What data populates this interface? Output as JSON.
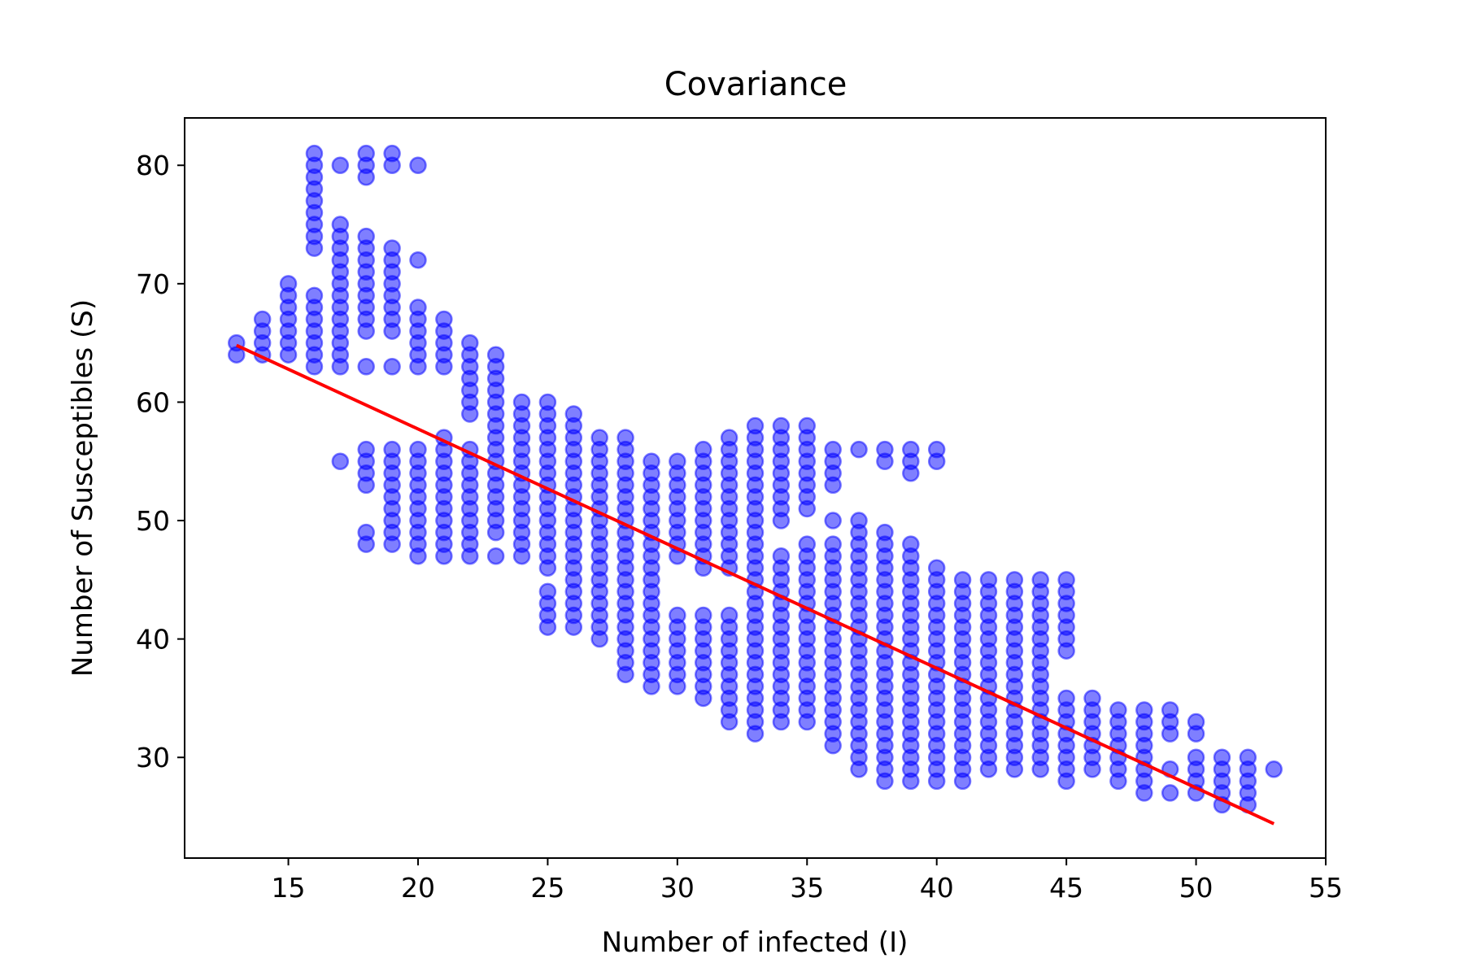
{
  "chart_data": {
    "type": "scatter",
    "title": "Covariance",
    "xlabel": "Number of infected (I)",
    "ylabel": "Number of Susceptibles (S)",
    "xlim": [
      11,
      55
    ],
    "ylim": [
      21.5,
      84
    ],
    "x_ticks": [
      15,
      20,
      25,
      30,
      35,
      40,
      45,
      50,
      55
    ],
    "y_ticks": [
      30,
      40,
      50,
      60,
      70,
      80
    ],
    "grid": false,
    "legend": "none",
    "colors": {
      "points": "#0000ff",
      "fit_line": "#ff0000",
      "axes": "#000000"
    },
    "point_alpha": 0.5,
    "column_ranges": [
      {
        "x": 13,
        "ranges": [
          [
            64,
            65
          ]
        ]
      },
      {
        "x": 14,
        "ranges": [
          [
            64,
            67
          ]
        ]
      },
      {
        "x": 15,
        "ranges": [
          [
            64,
            70
          ]
        ]
      },
      {
        "x": 16,
        "ranges": [
          [
            63,
            69
          ],
          [
            73,
            81
          ]
        ]
      },
      {
        "x": 17,
        "ranges": [
          [
            55,
            55
          ],
          [
            63,
            75
          ],
          [
            80,
            80
          ]
        ]
      },
      {
        "x": 18,
        "ranges": [
          [
            48,
            49
          ],
          [
            53,
            56
          ],
          [
            63,
            63
          ],
          [
            66,
            74
          ],
          [
            79,
            81
          ]
        ]
      },
      {
        "x": 19,
        "ranges": [
          [
            48,
            56
          ],
          [
            63,
            63
          ],
          [
            66,
            73
          ],
          [
            80,
            81
          ]
        ]
      },
      {
        "x": 20,
        "ranges": [
          [
            47,
            56
          ],
          [
            63,
            68
          ],
          [
            72,
            72
          ],
          [
            80,
            80
          ]
        ]
      },
      {
        "x": 21,
        "ranges": [
          [
            47,
            57
          ],
          [
            63,
            67
          ]
        ]
      },
      {
        "x": 22,
        "ranges": [
          [
            47,
            48
          ],
          [
            49,
            56
          ],
          [
            59,
            65
          ]
        ]
      },
      {
        "x": 23,
        "ranges": [
          [
            47,
            47
          ],
          [
            49,
            64
          ]
        ]
      },
      {
        "x": 24,
        "ranges": [
          [
            47,
            60
          ]
        ]
      },
      {
        "x": 25,
        "ranges": [
          [
            41,
            44
          ],
          [
            46,
            60
          ]
        ]
      },
      {
        "x": 26,
        "ranges": [
          [
            41,
            59
          ]
        ]
      },
      {
        "x": 27,
        "ranges": [
          [
            40,
            57
          ]
        ]
      },
      {
        "x": 28,
        "ranges": [
          [
            37,
            57
          ]
        ]
      },
      {
        "x": 29,
        "ranges": [
          [
            36,
            55
          ]
        ]
      },
      {
        "x": 30,
        "ranges": [
          [
            36,
            42
          ],
          [
            47,
            55
          ]
        ]
      },
      {
        "x": 31,
        "ranges": [
          [
            35,
            42
          ],
          [
            46,
            56
          ]
        ]
      },
      {
        "x": 32,
        "ranges": [
          [
            33,
            42
          ],
          [
            46,
            48
          ],
          [
            49,
            57
          ]
        ]
      },
      {
        "x": 33,
        "ranges": [
          [
            32,
            58
          ]
        ]
      },
      {
        "x": 34,
        "ranges": [
          [
            33,
            47
          ],
          [
            50,
            58
          ]
        ]
      },
      {
        "x": 35,
        "ranges": [
          [
            33,
            48
          ],
          [
            51,
            58
          ]
        ]
      },
      {
        "x": 36,
        "ranges": [
          [
            31,
            48
          ],
          [
            50,
            50
          ],
          [
            53,
            56
          ]
        ]
      },
      {
        "x": 37,
        "ranges": [
          [
            29,
            50
          ],
          [
            56,
            56
          ]
        ]
      },
      {
        "x": 38,
        "ranges": [
          [
            28,
            49
          ],
          [
            55,
            56
          ]
        ]
      },
      {
        "x": 39,
        "ranges": [
          [
            28,
            48
          ],
          [
            54,
            56
          ]
        ]
      },
      {
        "x": 40,
        "ranges": [
          [
            28,
            46
          ],
          [
            55,
            56
          ]
        ]
      },
      {
        "x": 41,
        "ranges": [
          [
            28,
            45
          ]
        ]
      },
      {
        "x": 42,
        "ranges": [
          [
            29,
            45
          ]
        ]
      },
      {
        "x": 43,
        "ranges": [
          [
            29,
            45
          ]
        ]
      },
      {
        "x": 44,
        "ranges": [
          [
            29,
            45
          ]
        ]
      },
      {
        "x": 45,
        "ranges": [
          [
            28,
            35
          ],
          [
            39,
            45
          ]
        ]
      },
      {
        "x": 46,
        "ranges": [
          [
            29,
            35
          ]
        ]
      },
      {
        "x": 47,
        "ranges": [
          [
            28,
            34
          ]
        ]
      },
      {
        "x": 48,
        "ranges": [
          [
            27,
            34
          ]
        ]
      },
      {
        "x": 49,
        "ranges": [
          [
            27,
            27
          ],
          [
            29,
            29
          ],
          [
            32,
            34
          ]
        ]
      },
      {
        "x": 50,
        "ranges": [
          [
            27,
            30
          ],
          [
            32,
            33
          ]
        ]
      },
      {
        "x": 51,
        "ranges": [
          [
            26,
            30
          ]
        ]
      },
      {
        "x": 52,
        "ranges": [
          [
            26,
            30
          ]
        ]
      },
      {
        "x": 53,
        "ranges": [
          [
            29,
            29
          ]
        ]
      }
    ],
    "fit_line": {
      "x": [
        13,
        53
      ],
      "y": [
        64.8,
        24.4
      ]
    }
  }
}
